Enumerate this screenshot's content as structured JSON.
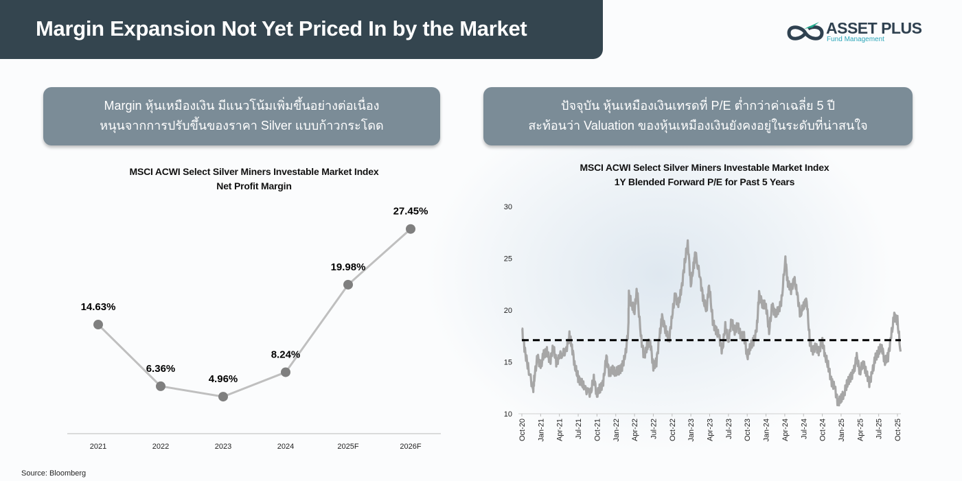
{
  "header": {
    "title": "Margin Expansion Not Yet Priced In by the Market"
  },
  "logo": {
    "name": "ASSET PLUS",
    "subtitle": "Fund Management"
  },
  "left_callout": {
    "line1": "Margin หุ้นเหมืองเงิน มีแนวโน้มเพิ่มขึ้นอย่างต่อเนื่อง",
    "line2": "หนุนจากการปรับขึ้นของราคา Silver แบบก้าวกระโดด"
  },
  "right_callout": {
    "line1": "ปัจจุบัน หุ้นเหมืองเงินเทรดที่ P/E ต่ำกว่าค่าเฉลี่ย 5 ปี",
    "line2": "สะท้อนว่า Valuation ของหุ้นเหมืองเงินยังคงอยู่ในระดับที่น่าสนใจ"
  },
  "source": "Source: Bloomberg",
  "colors": {
    "title_bar": "#34454f",
    "callout": "#7b8c97",
    "line": "#a6a6a6",
    "marker": "#7f7f7f",
    "avg_line": "#000000"
  },
  "chart_data": [
    {
      "type": "line",
      "title": "MSCI ACWI Select Silver Miners Investable Market Index",
      "subtitle": "Net Profit Margin",
      "categories": [
        "2021",
        "2022",
        "2023",
        "2024",
        "2025F",
        "2026F"
      ],
      "values": [
        14.63,
        6.36,
        4.96,
        8.24,
        19.98,
        27.45
      ],
      "labels": [
        "14.63%",
        "6.36%",
        "4.96%",
        "8.24%",
        "19.98%",
        "27.45%"
      ],
      "ylim": [
        0,
        30
      ],
      "grid": false
    },
    {
      "type": "line",
      "title": "MSCI ACWI Select Silver Miners Investable Market Index",
      "subtitle": "1Y Blended Forward P/E for Past 5 Years",
      "yticks": [
        10,
        15,
        20,
        25,
        30
      ],
      "ylim": [
        10,
        30
      ],
      "xticks": [
        "Oct-20",
        "Jan-21",
        "Apr-21",
        "Jul-21",
        "Oct-21",
        "Jan-22",
        "Apr-22",
        "Jul-22",
        "Oct-22",
        "Jan-23",
        "Apr-23",
        "Jul-23",
        "Oct-23",
        "Jan-24",
        "Apr-24",
        "Jul-24",
        "Oct-24",
        "Jan-25",
        "Apr-25",
        "Jul-25",
        "Oct-25"
      ],
      "x_months_from_oct20": [
        0,
        0.5,
        1,
        1.8,
        2,
        2.5,
        3,
        3.5,
        4,
        4.5,
        5,
        5.5,
        6,
        7,
        7.6,
        8,
        8.5,
        9,
        9.5,
        10,
        11,
        11.5,
        12,
        12.5,
        13,
        13.5,
        14,
        14.5,
        15,
        15.5,
        16,
        16.5,
        17,
        17.1,
        17.6,
        18,
        18.4,
        19,
        19.5,
        20,
        20.5,
        21,
        21.5,
        22,
        22.4,
        23,
        23.5,
        24,
        24.5,
        25,
        25.5,
        26,
        26.5,
        27,
        27.5,
        27.7,
        28.5,
        29,
        29.5,
        29.9,
        30.5,
        31,
        31.5,
        32,
        32.5,
        33,
        33.5,
        34,
        34.5,
        35,
        35.5,
        36,
        36.5,
        37,
        37.5,
        37.9,
        38.5,
        39,
        39.5,
        40,
        40.5,
        41,
        41.5,
        42.1,
        42.5,
        43,
        43.5,
        44,
        44.5,
        45,
        45.5,
        46,
        46.5,
        47,
        47.5,
        48,
        48.5,
        49,
        49.5,
        50,
        50.5,
        51,
        51.5,
        52,
        52.5,
        53,
        53.5,
        54,
        54.5,
        55,
        55.5,
        56,
        56.5,
        57,
        57.5,
        58,
        58.5,
        59,
        59.5,
        60,
        60.5
      ],
      "values": [
        18.2,
        16,
        14.5,
        12.3,
        13.5,
        15.5,
        14.5,
        15.8,
        16,
        15,
        16.5,
        15,
        15.5,
        16,
        17.5,
        16.5,
        14.5,
        13.5,
        13,
        12.5,
        12,
        13.5,
        11.8,
        12.5,
        13,
        15.5,
        13.8,
        14.3,
        14,
        14.2,
        14.5,
        15.5,
        18,
        21.5,
        20.5,
        20,
        22,
        17.5,
        15.5,
        16.5,
        17,
        14.5,
        15,
        17.5,
        19.3,
        18,
        17,
        19.5,
        21.5,
        20.5,
        22,
        24.5,
        26.5,
        22.5,
        24.5,
        25.5,
        23,
        21,
        20,
        22.5,
        19,
        18,
        17.5,
        16,
        18.5,
        17,
        19,
        18,
        18.5,
        17.5,
        17.5,
        15.5,
        16.5,
        17,
        18,
        21.5,
        20.5,
        20.5,
        18,
        20.5,
        19.5,
        20,
        21,
        25,
        22.5,
        22,
        23,
        21.5,
        19.5,
        20.5,
        21,
        17,
        16,
        16.5,
        16,
        17,
        15.5,
        14.5,
        13,
        12.5,
        11,
        11.5,
        12,
        13,
        13.5,
        14,
        15.5,
        14,
        15,
        14,
        13,
        14,
        15.5,
        16,
        16.5,
        15,
        15.5,
        17.5,
        19.5,
        19,
        16
      ],
      "average": 17.1,
      "grid": false
    }
  ]
}
